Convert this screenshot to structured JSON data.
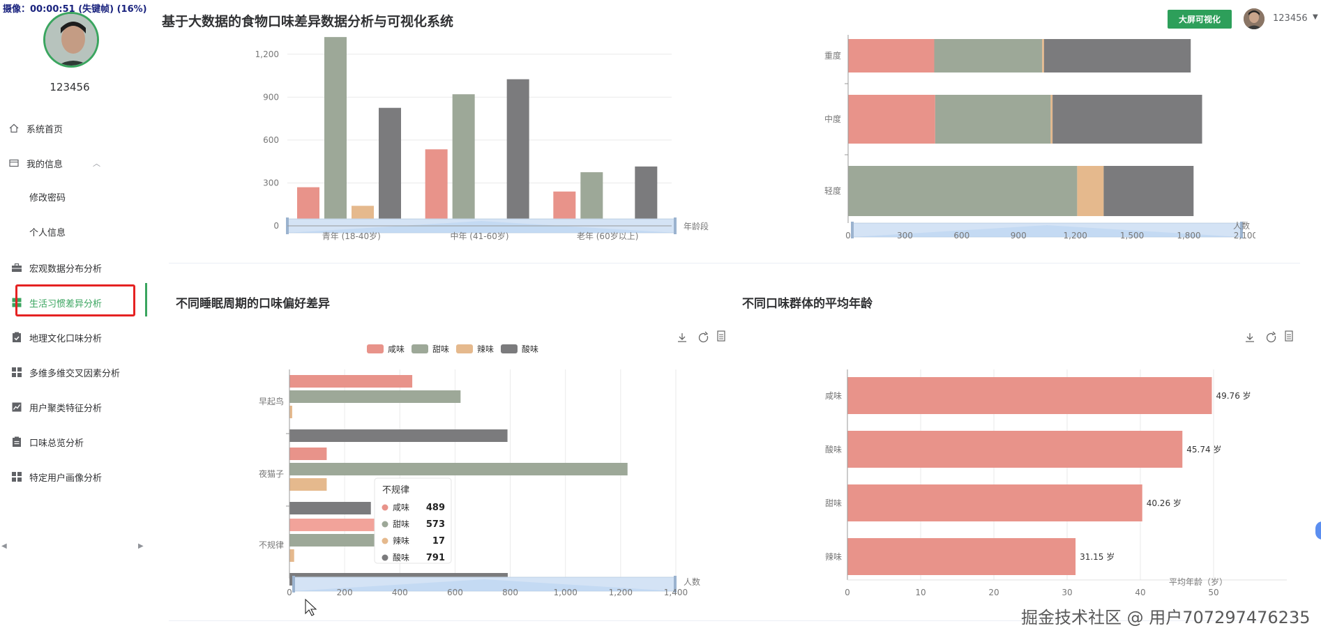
{
  "recording_badge": "摄像：00:00:51 (失键帧) (16%)",
  "sidebar": {
    "username": "123456",
    "items": [
      {
        "label": "系统首页",
        "icon": "home-icon"
      },
      {
        "label": "我的信息",
        "icon": "id-card-icon"
      },
      {
        "label": "修改密码",
        "icon": ""
      },
      {
        "label": "个人信息",
        "icon": ""
      },
      {
        "label": "宏观数据分布分析",
        "icon": "briefcase-icon"
      },
      {
        "label": "生活习惯差异分析",
        "icon": "grid-icon"
      },
      {
        "label": "地理文化口味分析",
        "icon": "clipboard-check-icon"
      },
      {
        "label": "多维多维交叉因素分析",
        "icon": "apps-icon"
      },
      {
        "label": "用户聚类特征分析",
        "icon": "line-chart-icon"
      },
      {
        "label": "口味总览分析",
        "icon": "clipboard-list-icon"
      },
      {
        "label": "特定用户画像分析",
        "icon": "apps-icon"
      }
    ]
  },
  "header": {
    "title": "基于大数据的食物口味差异数据分析与可视化系统",
    "big_screen_button": "大屏可视化",
    "user": "123456"
  },
  "colors": {
    "salty": "#e8938a",
    "sweet": "#9da898",
    "spicy": "#e5b98d",
    "sour": "#7b7b7d",
    "accent": "#3aa55f",
    "zoom": "#c9def7"
  },
  "legend": [
    "咸味",
    "甜味",
    "辣味",
    "酸味"
  ],
  "toolbox_icons": [
    "download-icon",
    "refresh-icon",
    "data-view-icon"
  ],
  "charts": {
    "age_chart": {
      "chart_data": {
        "type": "bar",
        "categories": [
          "青年 (18-40岁)",
          "中年 (41-60岁)",
          "老年 (60岁以上)"
        ],
        "series": [
          {
            "name": "咸味",
            "values": [
              270,
              535,
              240
            ]
          },
          {
            "name": "甜味",
            "values": [
              1320,
              920,
              375
            ]
          },
          {
            "name": "辣味",
            "values": [
              140,
              30,
              10
            ]
          },
          {
            "name": "酸味",
            "values": [
              825,
              1025,
              415
            ]
          }
        ],
        "xlabel": "年龄段",
        "ylabel": "",
        "y_ticks": [
          "0",
          "300",
          "600",
          "900",
          "1,200"
        ],
        "ylim": [
          0,
          1320
        ]
      }
    },
    "degree_chart": {
      "chart_data": {
        "type": "bar",
        "orientation": "horizontal",
        "stacked": true,
        "categories": [
          "重度",
          "中度",
          "轻度"
        ],
        "series": [
          {
            "name": "咸味",
            "values": [
              455,
              460,
              0
            ]
          },
          {
            "name": "甜味",
            "values": [
              570,
              610,
              1210
            ]
          },
          {
            "name": "辣味",
            "values": [
              10,
              10,
              140
            ]
          },
          {
            "name": "酸味",
            "values": [
              775,
              790,
              475
            ]
          }
        ],
        "xlabel": "人数",
        "x_ticks": [
          "0",
          "300",
          "600",
          "900",
          "1,200",
          "1,500",
          "1,800",
          "2,100"
        ],
        "xlim": [
          0,
          2100
        ]
      }
    },
    "sleep_chart": {
      "title": "不同睡眠周期的口味偏好差异",
      "chart_data": {
        "type": "bar",
        "orientation": "horizontal",
        "categories": [
          "早起鸟",
          "夜猫子",
          "不规律"
        ],
        "series": [
          {
            "name": "咸味",
            "values": [
              445,
              135,
              489
            ]
          },
          {
            "name": "甜味",
            "values": [
              620,
              1225,
              573
            ]
          },
          {
            "name": "辣味",
            "values": [
              10,
              135,
              17
            ]
          },
          {
            "name": "酸味",
            "values": [
              790,
              295,
              791
            ]
          }
        ],
        "xlabel": "人数",
        "x_ticks": [
          "0",
          "200",
          "400",
          "600",
          "800",
          "1,000",
          "1,200",
          "1,400"
        ],
        "xlim": [
          0,
          1400
        ]
      },
      "tooltip": {
        "title": "不规律",
        "rows": [
          {
            "name": "咸味",
            "value": "489"
          },
          {
            "name": "甜味",
            "value": "573"
          },
          {
            "name": "辣味",
            "value": "17"
          },
          {
            "name": "酸味",
            "value": "791"
          }
        ]
      }
    },
    "avg_age_chart": {
      "title": "不同口味群体的平均年龄",
      "chart_data": {
        "type": "bar",
        "orientation": "horizontal",
        "categories": [
          "咸味",
          "酸味",
          "甜味",
          "辣味"
        ],
        "values": [
          49.76,
          45.74,
          40.26,
          31.15
        ],
        "data_labels": [
          "49.76 岁",
          "45.74 岁",
          "40.26 岁",
          "31.15 岁"
        ],
        "xlabel": "平均年龄（岁）",
        "x_ticks": [
          "0",
          "10",
          "20",
          "30",
          "40",
          "50"
        ],
        "xlim": [
          0,
          60
        ]
      }
    }
  },
  "watermark": "掘金技术社区 @ 用户707297476235"
}
